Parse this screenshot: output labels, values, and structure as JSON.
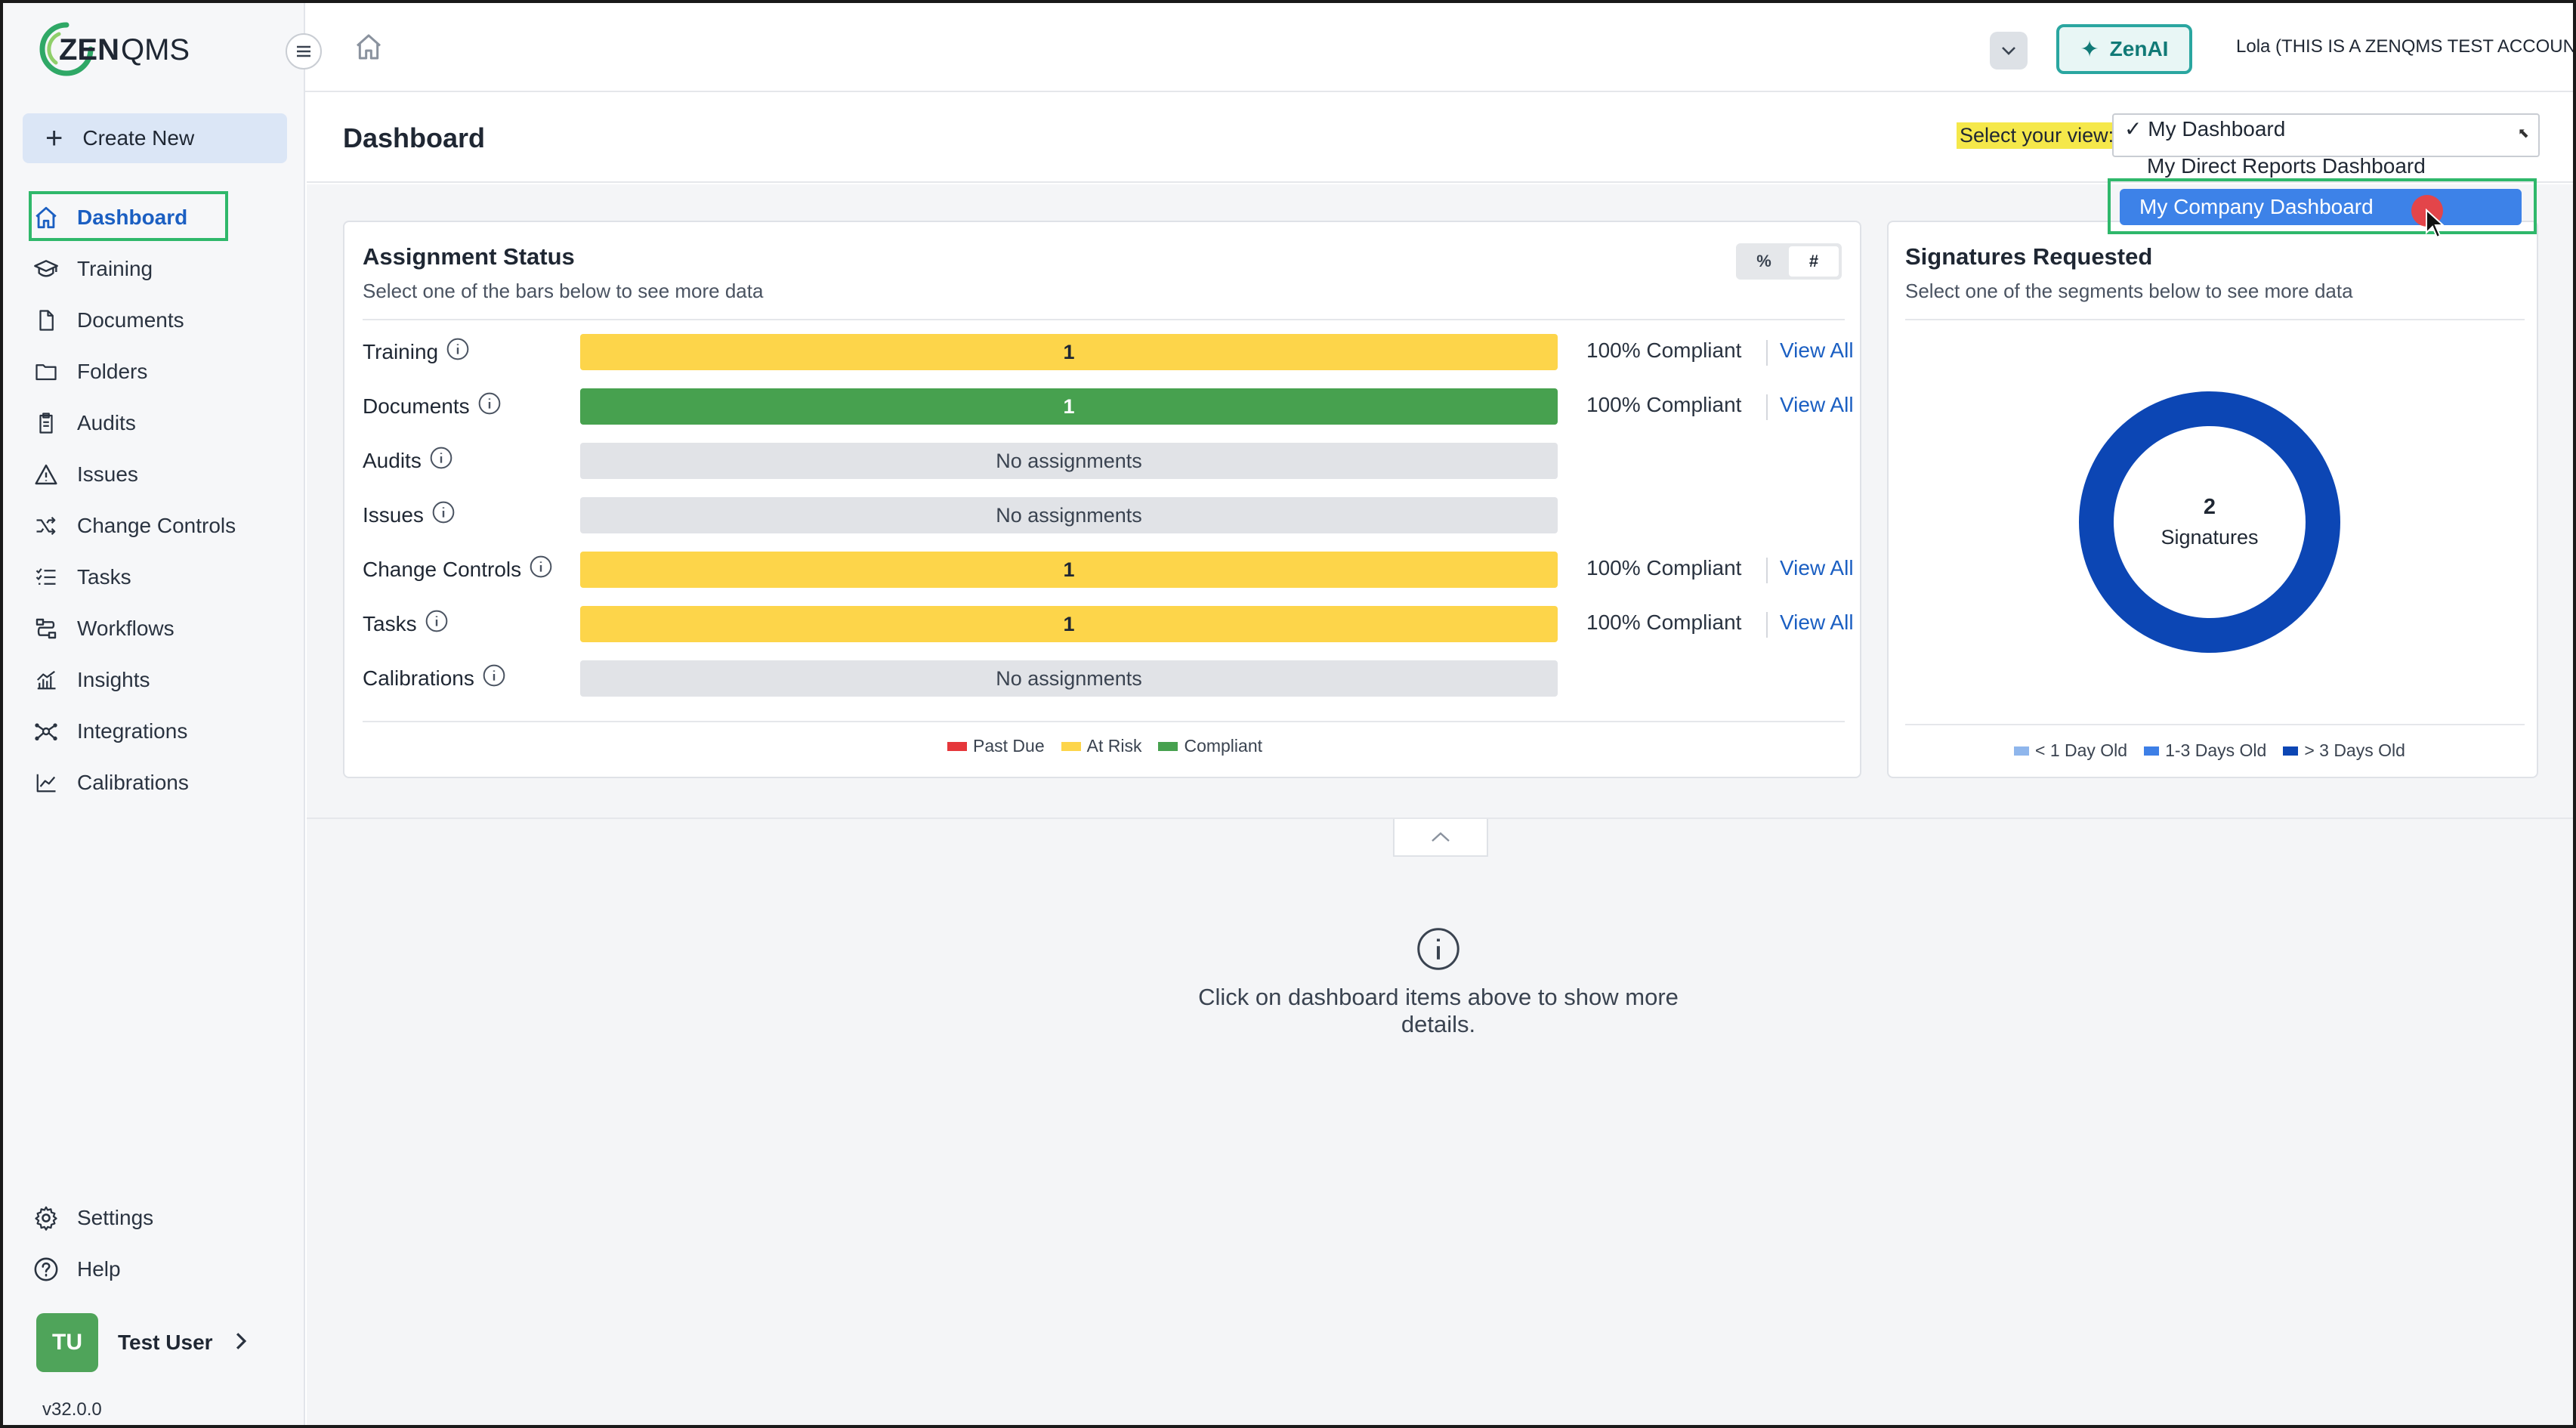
{
  "app": {
    "logo_text": "ZENQMS",
    "account": "Lola (THIS IS A ZENQMS TEST ACCOUNT)",
    "zenai_label": "ZenAI",
    "version": "v32.0.0"
  },
  "sidebar": {
    "create_new": "Create New",
    "items": [
      {
        "label": "Dashboard",
        "icon": "home-icon"
      },
      {
        "label": "Training",
        "icon": "graduation-cap-icon"
      },
      {
        "label": "Documents",
        "icon": "document-icon"
      },
      {
        "label": "Folders",
        "icon": "folder-icon"
      },
      {
        "label": "Audits",
        "icon": "clipboard-icon"
      },
      {
        "label": "Issues",
        "icon": "warning-icon"
      },
      {
        "label": "Change Controls",
        "icon": "shuffle-icon"
      },
      {
        "label": "Tasks",
        "icon": "checklist-icon"
      },
      {
        "label": "Workflows",
        "icon": "workflow-icon"
      },
      {
        "label": "Insights",
        "icon": "insights-chart-icon"
      },
      {
        "label": "Integrations",
        "icon": "network-icon"
      },
      {
        "label": "Calibrations",
        "icon": "line-chart-icon"
      }
    ],
    "settings": "Settings",
    "help": "Help",
    "user": {
      "initials": "TU",
      "name": "Test User"
    }
  },
  "dashboard": {
    "title": "Dashboard",
    "select_label": "Select your view:",
    "view_options": [
      {
        "label": "✓ My Dashboard"
      },
      {
        "label": "My Direct Reports Dashboard"
      },
      {
        "label": "My Company Dashboard"
      }
    ]
  },
  "assignment": {
    "title": "Assignment Status",
    "subtitle": "Select one of the bars below to see more data",
    "toggle": {
      "percent": "%",
      "count": "#"
    },
    "rows": [
      {
        "label": "Training",
        "bar": "1",
        "status": "yellow",
        "compliant": "100% Compliant",
        "view": "View All"
      },
      {
        "label": "Documents",
        "bar": "1",
        "status": "green",
        "compliant": "100% Compliant",
        "view": "View All"
      },
      {
        "label": "Audits",
        "bar": "No assignments",
        "status": "grey"
      },
      {
        "label": "Issues",
        "bar": "No assignments",
        "status": "grey"
      },
      {
        "label": "Change Controls",
        "bar": "1",
        "status": "yellow",
        "compliant": "100% Compliant",
        "view": "View All"
      },
      {
        "label": "Tasks",
        "bar": "1",
        "status": "yellow",
        "compliant": "100% Compliant",
        "view": "View All"
      },
      {
        "label": "Calibrations",
        "bar": "No assignments",
        "status": "grey"
      }
    ],
    "legend": [
      {
        "label": "Past Due",
        "color": "#e5373b"
      },
      {
        "label": "At Risk",
        "color": "#fdd54a"
      },
      {
        "label": "Compliant",
        "color": "#47a14f"
      }
    ]
  },
  "signatures": {
    "title": "Signatures Requested",
    "subtitle": "Select one of the segments below to see more data",
    "total": "2",
    "total_label": "Signatures",
    "donut_color": "#0c46b4",
    "legend": [
      {
        "label": "< 1 Day Old",
        "color": "#8fb6ec"
      },
      {
        "label": "1-3 Days Old",
        "color": "#3d7fe6"
      },
      {
        "label": "> 3 Days Old",
        "color": "#0c46b4"
      }
    ]
  },
  "details": {
    "message": "Click on dashboard items above to show more details."
  }
}
